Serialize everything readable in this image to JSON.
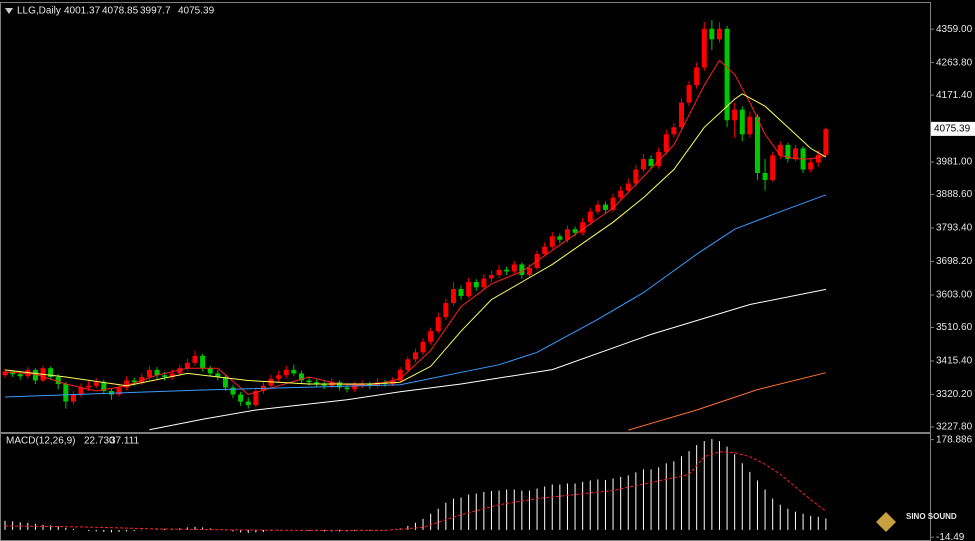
{
  "chart_data": [
    {
      "type": "candlestick",
      "title": "LLG,Daily",
      "up_color": "#ff0000",
      "down_color": "#00c800",
      "xlim": [
        -0.66,
        121.7
      ],
      "ylim": [
        3213.5,
        4433.3
      ],
      "yticks": [
        {
          "value": 4359,
          "label": "4359.00"
        },
        {
          "value": 4263.8,
          "label": "4263.80"
        },
        {
          "value": 4171.4,
          "label": "4171.40"
        },
        {
          "value": 3981,
          "label": "3981.00"
        },
        {
          "value": 3888.6,
          "label": "3888.60"
        },
        {
          "value": 3793.4,
          "label": "3793.40"
        },
        {
          "value": 3698.2,
          "label": "3698.20"
        },
        {
          "value": 3603,
          "label": "3603.00"
        },
        {
          "value": 3510.6,
          "label": "3510.60"
        },
        {
          "value": 3415.4,
          "label": "3415.40"
        },
        {
          "value": 3320.2,
          "label": "3320.20"
        },
        {
          "value": 3227.8,
          "label": "3227.80"
        }
      ],
      "candles": [
        [
          3375,
          3392,
          3368,
          3385
        ],
        [
          3385,
          3390,
          3370,
          3378
        ],
        [
          3378,
          3385,
          3362,
          3372
        ],
        [
          3372,
          3398,
          3365,
          3390
        ],
        [
          3390,
          3395,
          3350,
          3360
        ],
        [
          3360,
          3402,
          3355,
          3395
        ],
        [
          3395,
          3400,
          3362,
          3370
        ],
        [
          3370,
          3378,
          3335,
          3350
        ],
        [
          3350,
          3356,
          3280,
          3300
        ],
        [
          3300,
          3330,
          3292,
          3320
        ],
        [
          3320,
          3352,
          3312,
          3340
        ],
        [
          3340,
          3358,
          3330,
          3345
        ],
        [
          3345,
          3366,
          3338,
          3355
        ],
        [
          3355,
          3362,
          3322,
          3330
        ],
        [
          3330,
          3338,
          3305,
          3320
        ],
        [
          3320,
          3350,
          3314,
          3340
        ],
        [
          3340,
          3372,
          3332,
          3360
        ],
        [
          3360,
          3368,
          3345,
          3355
        ],
        [
          3355,
          3380,
          3348,
          3370
        ],
        [
          3370,
          3402,
          3362,
          3390
        ],
        [
          3390,
          3398,
          3365,
          3375
        ],
        [
          3375,
          3384,
          3360,
          3370
        ],
        [
          3370,
          3392,
          3362,
          3380
        ],
        [
          3380,
          3405,
          3372,
          3395
        ],
        [
          3395,
          3422,
          3388,
          3410
        ],
        [
          3410,
          3445,
          3402,
          3430
        ],
        [
          3430,
          3436,
          3385,
          3395
        ],
        [
          3395,
          3402,
          3372,
          3380
        ],
        [
          3380,
          3390,
          3360,
          3370
        ],
        [
          3370,
          3378,
          3330,
          3340
        ],
        [
          3340,
          3348,
          3310,
          3320
        ],
        [
          3320,
          3328,
          3288,
          3300
        ],
        [
          3300,
          3312,
          3280,
          3290
        ],
        [
          3290,
          3340,
          3284,
          3330
        ],
        [
          3330,
          3356,
          3322,
          3345
        ],
        [
          3345,
          3376,
          3338,
          3365
        ],
        [
          3365,
          3388,
          3356,
          3375
        ],
        [
          3375,
          3402,
          3366,
          3390
        ],
        [
          3390,
          3405,
          3372,
          3380
        ],
        [
          3380,
          3388,
          3352,
          3360
        ],
        [
          3360,
          3370,
          3346,
          3355
        ],
        [
          3355,
          3364,
          3340,
          3350
        ],
        [
          3350,
          3358,
          3336,
          3345
        ],
        [
          3345,
          3366,
          3338,
          3355
        ],
        [
          3355,
          3360,
          3332,
          3340
        ],
        [
          3340,
          3348,
          3326,
          3335
        ],
        [
          3335,
          3356,
          3328,
          3345
        ],
        [
          3345,
          3360,
          3338,
          3350
        ],
        [
          3350,
          3356,
          3336,
          3345
        ],
        [
          3345,
          3366,
          3340,
          3355
        ],
        [
          3355,
          3362,
          3342,
          3350
        ],
        [
          3350,
          3370,
          3344,
          3360
        ],
        [
          3360,
          3398,
          3354,
          3390
        ],
        [
          3390,
          3428,
          3384,
          3420
        ],
        [
          3420,
          3450,
          3412,
          3440
        ],
        [
          3440,
          3480,
          3432,
          3470
        ],
        [
          3470,
          3510,
          3462,
          3500
        ],
        [
          3500,
          3552,
          3494,
          3540
        ],
        [
          3540,
          3592,
          3532,
          3580
        ],
        [
          3580,
          3640,
          3572,
          3620
        ],
        [
          3620,
          3630,
          3590,
          3600
        ],
        [
          3600,
          3652,
          3594,
          3640
        ],
        [
          3640,
          3648,
          3615,
          3625
        ],
        [
          3625,
          3662,
          3618,
          3650
        ],
        [
          3650,
          3672,
          3640,
          3660
        ],
        [
          3660,
          3688,
          3652,
          3675
        ],
        [
          3675,
          3684,
          3660,
          3670
        ],
        [
          3670,
          3700,
          3662,
          3690
        ],
        [
          3690,
          3696,
          3650,
          3660
        ],
        [
          3660,
          3690,
          3652,
          3680
        ],
        [
          3680,
          3730,
          3674,
          3720
        ],
        [
          3720,
          3752,
          3712,
          3740
        ],
        [
          3740,
          3782,
          3734,
          3770
        ],
        [
          3770,
          3778,
          3750,
          3760
        ],
        [
          3760,
          3800,
          3752,
          3790
        ],
        [
          3790,
          3798,
          3770,
          3780
        ],
        [
          3780,
          3822,
          3772,
          3810
        ],
        [
          3810,
          3852,
          3802,
          3840
        ],
        [
          3840,
          3872,
          3832,
          3860
        ],
        [
          3860,
          3868,
          3836,
          3845
        ],
        [
          3845,
          3892,
          3838,
          3880
        ],
        [
          3880,
          3912,
          3872,
          3900
        ],
        [
          3900,
          3934,
          3892,
          3920
        ],
        [
          3920,
          3972,
          3912,
          3960
        ],
        [
          3960,
          4004,
          3952,
          3990
        ],
        [
          3990,
          4000,
          3960,
          3970
        ],
        [
          3970,
          4022,
          3962,
          4010
        ],
        [
          4010,
          4072,
          4002,
          4060
        ],
        [
          4060,
          4092,
          4050,
          4080
        ],
        [
          4080,
          4162,
          4072,
          4150
        ],
        [
          4150,
          4212,
          4140,
          4200
        ],
        [
          4200,
          4264,
          4190,
          4250
        ],
        [
          4250,
          4380,
          4240,
          4360
        ],
        [
          4360,
          4385,
          4300,
          4330
        ],
        [
          4330,
          4378,
          4320,
          4360
        ],
        [
          4360,
          4368,
          4080,
          4100
        ],
        [
          4100,
          4150,
          4050,
          4130
        ],
        [
          4130,
          4140,
          4040,
          4060
        ],
        [
          4060,
          4125,
          4050,
          4110
        ],
        [
          4110,
          4118,
          3930,
          3950
        ],
        [
          3950,
          3990,
          3900,
          3930
        ],
        [
          3930,
          4010,
          3925,
          4000
        ],
        [
          4000,
          4040,
          3990,
          4030
        ],
        [
          4030,
          4036,
          3980,
          3990
        ],
        [
          3990,
          4030,
          3984,
          4020
        ],
        [
          4020,
          4026,
          3950,
          3960
        ],
        [
          3960,
          3992,
          3952,
          3980
        ],
        [
          3980,
          4014,
          3968,
          4001.37
        ],
        [
          4001.37,
          4078.85,
          3997.7,
          4075.39
        ]
      ],
      "lines": [
        {
          "color": "#ff2020",
          "x": [
            0,
            4,
            8,
            12,
            16,
            20,
            24,
            28,
            32,
            36,
            40,
            44,
            48,
            52,
            56,
            60,
            64,
            68,
            72,
            76,
            80,
            84,
            88,
            92,
            94,
            96,
            98,
            100,
            102,
            104,
            106,
            108
          ],
          "values": [
            3385,
            3378,
            3350,
            3330,
            3345,
            3375,
            3395,
            3395,
            3320,
            3345,
            3370,
            3350,
            3345,
            3365,
            3445,
            3570,
            3635,
            3670,
            3730,
            3790,
            3850,
            3940,
            4030,
            4200,
            4270,
            4230,
            4150,
            4060,
            4000,
            3990,
            3990,
            4000
          ]
        },
        {
          "color": "#ffff60",
          "x": [
            0,
            8,
            16,
            24,
            32,
            40,
            48,
            52,
            56,
            60,
            64,
            68,
            72,
            76,
            80,
            84,
            88,
            92,
            96,
            97,
            100,
            102,
            104,
            106,
            108
          ],
          "values": [
            3390,
            3370,
            3345,
            3380,
            3360,
            3350,
            3350,
            3355,
            3400,
            3500,
            3590,
            3640,
            3690,
            3750,
            3810,
            3880,
            3960,
            4080,
            4160,
            4175,
            4140,
            4100,
            4060,
            4020,
            3995
          ]
        },
        {
          "color": "#3b9cff",
          "x": [
            0,
            26,
            52,
            65,
            70,
            78,
            84,
            91,
            96,
            102,
            108
          ],
          "values": [
            3313,
            3333,
            3348,
            3405,
            3440,
            3534,
            3610,
            3719,
            3790,
            3840,
            3888
          ]
        },
        {
          "color": "#ffffff",
          "x": [
            19,
            26,
            33,
            45,
            52,
            60,
            72,
            85,
            98,
            108
          ],
          "values": [
            3220,
            3250,
            3276,
            3305,
            3328,
            3350,
            3391,
            3491,
            3576,
            3619
          ]
        },
        {
          "color": "#ff7030",
          "x": [
            82,
            91,
            99,
            108
          ],
          "values": [
            3219,
            3276,
            3334,
            3382
          ]
        }
      ]
    },
    {
      "type": "macd",
      "title": "MACD(12,26,9)",
      "readout": [
        {
          "value": 22.73,
          "label": "22.730"
        },
        37.111
      ],
      "xlim": [
        -0.66,
        121.7
      ],
      "ylim": [
        -22,
        190
      ],
      "yticks": [
        178.886,
        -14.49
      ],
      "histogram_color": "#ffffff",
      "values": [
        18,
        17,
        15,
        14,
        12,
        10,
        9,
        7,
        4,
        2,
        0,
        -2,
        -3,
        -4,
        -5,
        -4,
        -3,
        -2,
        -1,
        0,
        1,
        2,
        2,
        3,
        5,
        6,
        5,
        3,
        1,
        -1,
        -3,
        -5,
        -6,
        -5,
        -4,
        -2,
        -1,
        0,
        0,
        -1,
        -2,
        -2,
        -3,
        -3,
        -3,
        -3,
        -2,
        -2,
        -2,
        -1,
        -1,
        0,
        3,
        8,
        14,
        22,
        32,
        42,
        54,
        62,
        64,
        70,
        72,
        75,
        77,
        78,
        80,
        80,
        78,
        78,
        82,
        86,
        90,
        90,
        92,
        92,
        95,
        98,
        100,
        99,
        102,
        105,
        108,
        114,
        120,
        120,
        124,
        132,
        136,
        146,
        156,
        168,
        176,
        180,
        176,
        165,
        150,
        132,
        115,
        98,
        80,
        62,
        50,
        42,
        36,
        32,
        28,
        26,
        22.73
      ],
      "signal": {
        "color": "#ff2020",
        "x": [
          0,
          10,
          20,
          30,
          40,
          50,
          55,
          60,
          65,
          70,
          80,
          90,
          92,
          94,
          96,
          98,
          100,
          102,
          104,
          106,
          108
        ],
        "values": [
          8,
          6,
          2,
          0,
          -1,
          -1,
          5,
          30,
          50,
          62,
          78,
          110,
          145,
          155,
          153,
          145,
          130,
          110,
          85,
          60,
          37.111
        ]
      }
    },
    {
      "type": "logo",
      "title": "SINO SOUND"
    }
  ]
}
